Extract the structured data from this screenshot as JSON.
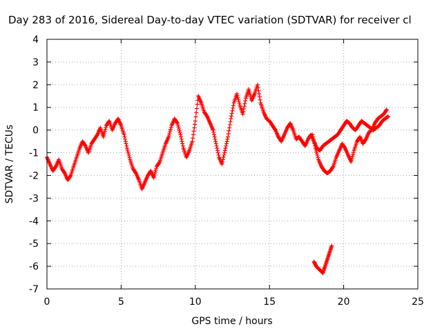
{
  "chart_data": {
    "type": "scatter",
    "title": "Day 283 of 2016, Sidereal Day-to-day VTEC variation (SDTVAR) for receiver cl",
    "xlabel": "GPS time / hours",
    "ylabel": "SDTVAR / TECUs",
    "xlim": [
      0,
      25
    ],
    "ylim": [
      -7,
      4
    ],
    "xticks": [
      "0",
      "5",
      "10",
      "15",
      "20",
      "25"
    ],
    "yticks": [
      "4",
      "3",
      "2",
      "1",
      "0",
      "-1",
      "-2",
      "-3",
      "-4",
      "-5",
      "-6",
      "-7"
    ],
    "grid": true,
    "marker": "+",
    "series": [
      {
        "name": "SDTVAR",
        "color": "#ff0000",
        "x": [
          0.0,
          0.2,
          0.4,
          0.6,
          0.8,
          1.0,
          1.2,
          1.4,
          1.6,
          1.8,
          2.0,
          2.2,
          2.4,
          2.6,
          2.8,
          3.0,
          3.2,
          3.4,
          3.6,
          3.8,
          4.0,
          4.2,
          4.4,
          4.6,
          4.8,
          5.0,
          5.2,
          5.4,
          5.6,
          5.8,
          6.0,
          6.2,
          6.4,
          6.6,
          6.8,
          7.0,
          7.2,
          7.4,
          7.6,
          7.8,
          8.0,
          8.2,
          8.4,
          8.6,
          8.8,
          9.0,
          9.2,
          9.4,
          9.6,
          9.8,
          10.0,
          10.2,
          10.4,
          10.6,
          10.8,
          11.0,
          11.2,
          11.4,
          11.6,
          11.8,
          12.0,
          12.2,
          12.4,
          12.6,
          12.8,
          13.0,
          13.2,
          13.4,
          13.6,
          13.8,
          14.0,
          14.2,
          14.4,
          14.6,
          14.8,
          15.0,
          15.2,
          15.4,
          15.6,
          15.8,
          16.0,
          16.2,
          16.4,
          16.6,
          16.8,
          17.0,
          17.2,
          17.4,
          17.6,
          17.8,
          18.0,
          18.2,
          18.4,
          18.6,
          18.8,
          19.0,
          19.2,
          19.4,
          19.6,
          19.8,
          20.0,
          20.2,
          20.4,
          20.6,
          20.8,
          21.0,
          21.2,
          21.4,
          21.6,
          21.8,
          22.0,
          22.2,
          22.4,
          22.6,
          22.8,
          23.0
        ],
        "y": [
          -1.2,
          -1.5,
          -1.8,
          -1.6,
          -1.3,
          -1.7,
          -1.9,
          -2.2,
          -2.0,
          -1.6,
          -1.2,
          -0.8,
          -0.5,
          -0.7,
          -1.0,
          -0.6,
          -0.4,
          -0.2,
          0.1,
          -0.3,
          0.2,
          0.4,
          0.0,
          0.3,
          0.5,
          0.2,
          -0.2,
          -0.8,
          -1.3,
          -1.7,
          -1.9,
          -2.2,
          -2.6,
          -2.3,
          -2.0,
          -1.8,
          -2.1,
          -1.6,
          -1.4,
          -1.0,
          -0.6,
          -0.3,
          0.2,
          0.5,
          0.3,
          -0.2,
          -0.8,
          -1.2,
          -0.9,
          -0.5,
          0.4,
          1.5,
          1.2,
          0.8,
          0.6,
          0.3,
          0.0,
          -0.6,
          -1.2,
          -1.5,
          -0.9,
          -0.3,
          0.5,
          1.2,
          1.6,
          1.1,
          0.7,
          1.4,
          1.8,
          1.3,
          1.6,
          2.0,
          1.2,
          0.8,
          0.5,
          0.4,
          0.2,
          0.0,
          -0.3,
          -0.5,
          -0.2,
          0.1,
          0.3,
          0.0,
          -0.4,
          -0.3,
          -0.5,
          -0.7,
          -0.4,
          -0.2,
          -0.5,
          -0.8,
          -0.9,
          -0.7,
          -0.6,
          -0.5,
          -0.4,
          -0.3,
          -0.2,
          0.0,
          0.2,
          0.4,
          0.3,
          0.1,
          0.0,
          0.2,
          0.4,
          0.3,
          0.2,
          0.1,
          0.0,
          0.1,
          0.2,
          0.4,
          0.5,
          0.6
        ],
        "x2": [
          17.9,
          18.1,
          18.3,
          18.5,
          18.7,
          18.9,
          19.1,
          19.3,
          19.5,
          19.7,
          19.9,
          20.1,
          20.3,
          20.5,
          20.7,
          20.9,
          21.1,
          21.3,
          21.5,
          21.7,
          21.9,
          22.1,
          22.3,
          22.5,
          22.7,
          22.9
        ],
        "y2": [
          -0.2,
          -0.8,
          -1.3,
          -1.6,
          -1.8,
          -1.9,
          -1.8,
          -1.6,
          -1.2,
          -0.9,
          -0.6,
          -0.8,
          -1.1,
          -1.4,
          -0.9,
          -0.5,
          -0.3,
          -0.6,
          -0.4,
          -0.1,
          0.0,
          0.3,
          0.5,
          0.6,
          0.7,
          0.9
        ],
        "x3": [
          18.0,
          18.15,
          18.3,
          18.45,
          18.6,
          18.75,
          18.9,
          19.05,
          19.2
        ],
        "y3": [
          -5.8,
          -6.0,
          -6.1,
          -6.2,
          -6.3,
          -6.0,
          -5.7,
          -5.4,
          -5.1
        ]
      }
    ]
  }
}
